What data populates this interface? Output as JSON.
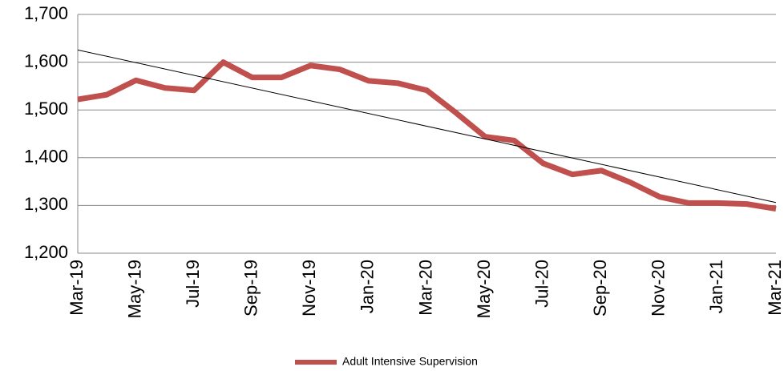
{
  "chart_data": {
    "type": "line",
    "categories": [
      "Mar-19",
      null,
      "May-19",
      null,
      "Jul-19",
      null,
      "Sep-19",
      null,
      "Nov-19",
      null,
      "Jan-20",
      null,
      "Mar-20",
      null,
      "May-20",
      null,
      "Jul-20",
      null,
      "Sep-20",
      null,
      "Nov-20",
      null,
      "Jan-21",
      null,
      "Mar-21"
    ],
    "series": [
      {
        "name": "Adult Intensive Supervision",
        "color": "#c0504d",
        "values": [
          1522,
          1532,
          1562,
          1546,
          1541,
          1600,
          1568,
          1568,
          1593,
          1585,
          1561,
          1556,
          1541,
          1494,
          1444,
          1436,
          1388,
          1365,
          1373,
          1348,
          1318,
          1305,
          1305,
          1303,
          1293
        ]
      }
    ],
    "ylim": [
      1200,
      1700
    ],
    "yticks": [
      {
        "value": 1200,
        "label": "1,200"
      },
      {
        "value": 1300,
        "label": "1,300"
      },
      {
        "value": 1400,
        "label": "1,400"
      },
      {
        "value": 1500,
        "label": "1,500"
      },
      {
        "value": 1600,
        "label": "1,600"
      },
      {
        "value": 1700,
        "label": "1,700"
      }
    ],
    "grid": true,
    "trendline": true,
    "legend": "bottom"
  }
}
